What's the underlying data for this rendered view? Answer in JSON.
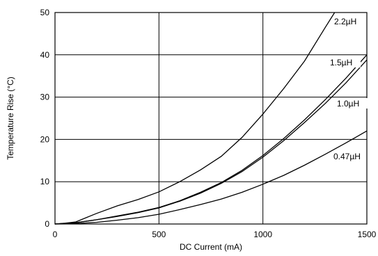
{
  "chart_data": {
    "type": "line",
    "xlabel": "DC Current (mA)",
    "ylabel": "Temperature Rise (°C)",
    "xlim": [
      0,
      1500
    ],
    "ylim": [
      0,
      50
    ],
    "x_ticks": [
      "0",
      "500",
      "1000",
      "1500"
    ],
    "y_ticks": [
      "0",
      "10",
      "20",
      "30",
      "40",
      "50"
    ],
    "grid": true,
    "series": [
      {
        "name": "2.2µH",
        "points": [
          [
            0,
            0
          ],
          [
            50,
            0.2
          ],
          [
            100,
            0.5
          ],
          [
            150,
            1.5
          ],
          [
            200,
            2.5
          ],
          [
            300,
            4.3
          ],
          [
            400,
            5.8
          ],
          [
            500,
            7.6
          ],
          [
            600,
            10.0
          ],
          [
            700,
            12.8
          ],
          [
            800,
            16.0
          ],
          [
            900,
            20.5
          ],
          [
            1000,
            26.0
          ],
          [
            1100,
            32.0
          ],
          [
            1200,
            38.5
          ],
          [
            1300,
            46.5
          ],
          [
            1345,
            50.0
          ]
        ]
      },
      {
        "name": "1.5µH",
        "points": [
          [
            0,
            0
          ],
          [
            100,
            0.3
          ],
          [
            200,
            1.0
          ],
          [
            300,
            1.9
          ],
          [
            400,
            2.8
          ],
          [
            500,
            3.9
          ],
          [
            600,
            5.5
          ],
          [
            700,
            7.5
          ],
          [
            800,
            9.8
          ],
          [
            900,
            12.7
          ],
          [
            1000,
            16.2
          ],
          [
            1100,
            20.2
          ],
          [
            1200,
            24.6
          ],
          [
            1300,
            29.4
          ],
          [
            1400,
            34.5
          ],
          [
            1500,
            40.0
          ]
        ]
      },
      {
        "name": "1.0µH",
        "points": [
          [
            0,
            0
          ],
          [
            100,
            0.3
          ],
          [
            200,
            1.0
          ],
          [
            300,
            1.8
          ],
          [
            400,
            2.7
          ],
          [
            500,
            3.8
          ],
          [
            600,
            5.4
          ],
          [
            700,
            7.3
          ],
          [
            800,
            9.6
          ],
          [
            900,
            12.4
          ],
          [
            1000,
            15.8
          ],
          [
            1100,
            19.7
          ],
          [
            1200,
            24.0
          ],
          [
            1300,
            28.5
          ],
          [
            1400,
            33.4
          ],
          [
            1500,
            38.8
          ]
        ]
      },
      {
        "name": "0.47µH",
        "points": [
          [
            0,
            0
          ],
          [
            100,
            0.1
          ],
          [
            200,
            0.4
          ],
          [
            300,
            0.9
          ],
          [
            400,
            1.5
          ],
          [
            500,
            2.3
          ],
          [
            600,
            3.4
          ],
          [
            700,
            4.6
          ],
          [
            800,
            5.9
          ],
          [
            900,
            7.5
          ],
          [
            1000,
            9.4
          ],
          [
            1100,
            11.5
          ],
          [
            1200,
            13.9
          ],
          [
            1300,
            16.5
          ],
          [
            1400,
            19.2
          ],
          [
            1500,
            22.0
          ]
        ]
      }
    ]
  }
}
